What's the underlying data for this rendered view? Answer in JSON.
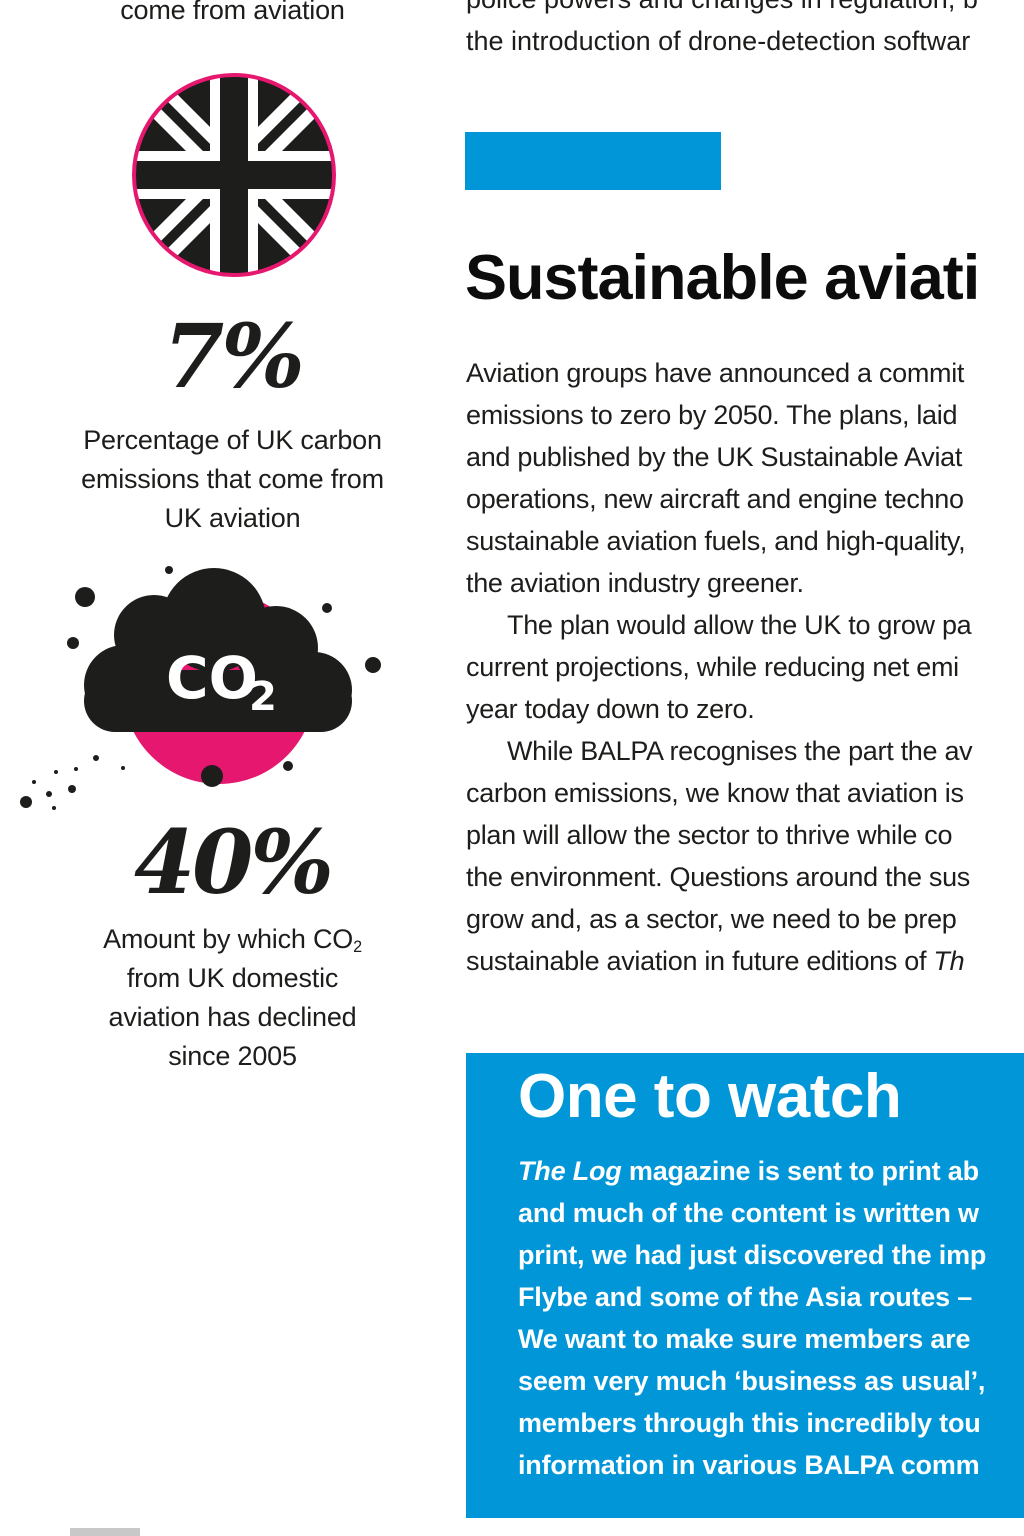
{
  "left": {
    "top_caption": "come from aviation",
    "stat1": {
      "value": "7%",
      "caption": [
        "Percentage of UK carbon",
        "emissions that come from",
        "UK aviation"
      ]
    },
    "co2_icon_text": "CO",
    "co2_icon_sub": "2",
    "stat2": {
      "value": "40%",
      "caption_line1_pre": "Amount by which CO",
      "caption_line1_sub": "2",
      "caption_rest": [
        "from UK domestic",
        "aviation has declined",
        "since 2005"
      ]
    }
  },
  "right": {
    "top_lines": [
      "police powers and changes in regulation, b",
      "the introduction of drone-detection softwar"
    ],
    "heading": "Sustainable aviati",
    "paragraphs": [
      "Aviation groups have announced a commit",
      "emissions to zero by 2050. The plans, laid",
      "and published by the UK Sustainable Aviat",
      "operations, new aircraft and engine techno",
      "sustainable aviation fuels, and high-quality,",
      "the aviation industry greener.",
      "The plan would allow the UK to grow pa",
      "current projections, while reducing net emi",
      "year today down to zero.",
      "While BALPA recognises the part the av",
      "carbon emissions, we know that aviation is",
      "plan will allow the sector to thrive while co",
      "the environment. Questions around the sus",
      "grow and, as a sector, we need to be prep",
      "sustainable aviation in future editions of "
    ],
    "last_line_italic": "Th",
    "watch": {
      "title": "One to watch",
      "first_italic": "The Log",
      "first_rest": " magazine is sent to print ab",
      "lines": [
        "and much of the content is written w",
        "print, we had just discovered the imp",
        "Flybe and some of the Asia routes –",
        "We want to make sure members are",
        "seem very much ‘business as usual’,",
        "members through this incredibly tou",
        "information in various BALPA comm"
      ]
    }
  },
  "colors": {
    "accent_blue": "#0196d7",
    "accent_pink": "#e5176e",
    "ink": "#1d1d1b"
  },
  "icons": [
    "union-jack-icon",
    "co2-cloud-icon"
  ]
}
